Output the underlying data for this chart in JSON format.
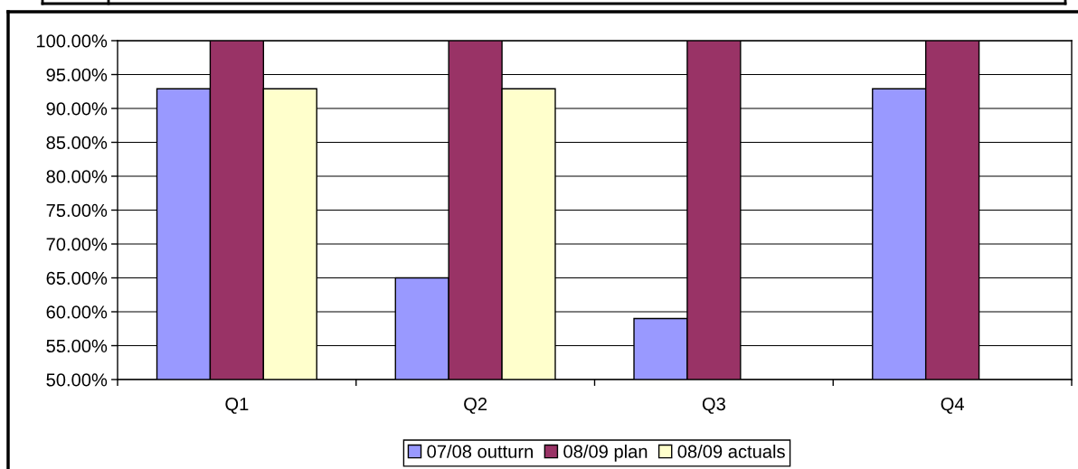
{
  "chart_data": {
    "type": "bar",
    "categories": [
      "Q1",
      "Q2",
      "Q3",
      "Q4"
    ],
    "series": [
      {
        "name": "07/08 outturn",
        "color": "#9999ff",
        "values": [
          92.9,
          65,
          59,
          92.9
        ]
      },
      {
        "name": "08/09 plan",
        "color": "#993366",
        "values": [
          100,
          100,
          100,
          100
        ]
      },
      {
        "name": "08/09 actuals",
        "color": "#ffffcc",
        "values": [
          92.9,
          92.9,
          null,
          null
        ]
      }
    ],
    "ylim": [
      50,
      100
    ],
    "yticks": [
      {
        "value": 50,
        "label": "50.00%"
      },
      {
        "value": 55,
        "label": "55.00%"
      },
      {
        "value": 60,
        "label": "60.00%"
      },
      {
        "value": 65,
        "label": "65.00%"
      },
      {
        "value": 70,
        "label": "70.00%"
      },
      {
        "value": 75,
        "label": "75.00%"
      },
      {
        "value": 80,
        "label": "80.00%"
      },
      {
        "value": 85,
        "label": "85.00%"
      },
      {
        "value": 90,
        "label": "90.00%"
      },
      {
        "value": 95,
        "label": "95.00%"
      },
      {
        "value": 100,
        "label": "100.00%"
      }
    ],
    "grid": "y",
    "legend": "bottom"
  }
}
